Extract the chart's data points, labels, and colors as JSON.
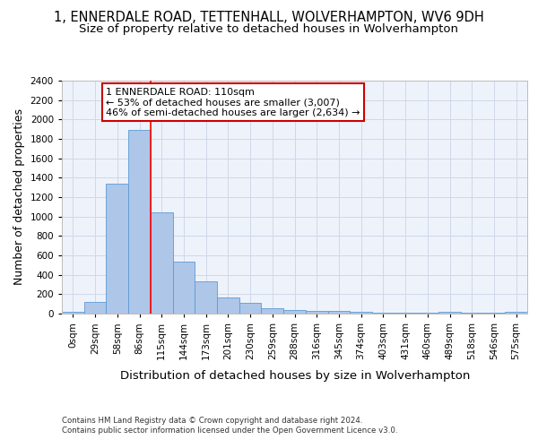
{
  "title_line1": "1, ENNERDALE ROAD, TETTENHALL, WOLVERHAMPTON, WV6 9DH",
  "title_line2": "Size of property relative to detached houses in Wolverhampton",
  "xlabel": "Distribution of detached houses by size in Wolverhampton",
  "ylabel": "Number of detached properties",
  "footer_line1": "Contains HM Land Registry data © Crown copyright and database right 2024.",
  "footer_line2": "Contains public sector information licensed under the Open Government Licence v3.0.",
  "bar_labels": [
    "0sqm",
    "29sqm",
    "58sqm",
    "86sqm",
    "115sqm",
    "144sqm",
    "173sqm",
    "201sqm",
    "230sqm",
    "259sqm",
    "288sqm",
    "316sqm",
    "345sqm",
    "374sqm",
    "403sqm",
    "431sqm",
    "460sqm",
    "489sqm",
    "518sqm",
    "546sqm",
    "575sqm"
  ],
  "bar_values": [
    15,
    120,
    1340,
    1890,
    1045,
    540,
    335,
    170,
    110,
    60,
    40,
    30,
    28,
    18,
    5,
    5,
    5,
    22,
    5,
    5,
    18
  ],
  "bar_color": "#aec6e8",
  "bar_edgecolor": "#5b9bd5",
  "grid_color": "#d0d8e8",
  "background_color": "#eef2fa",
  "ylim": [
    0,
    2400
  ],
  "yticks": [
    0,
    200,
    400,
    600,
    800,
    1000,
    1200,
    1400,
    1600,
    1800,
    2000,
    2200,
    2400
  ],
  "annotation_line1": "1 ENNERDALE ROAD: 110sqm",
  "annotation_line2": "← 53% of detached houses are smaller (3,007)",
  "annotation_line3": "46% of semi-detached houses are larger (2,634) →",
  "annotation_box_color": "#cc0000",
  "red_line_x": 3.5,
  "title_fontsize": 10.5,
  "subtitle_fontsize": 9.5,
  "axis_label_fontsize": 9,
  "tick_fontsize": 7.5,
  "annotation_fontsize": 8
}
